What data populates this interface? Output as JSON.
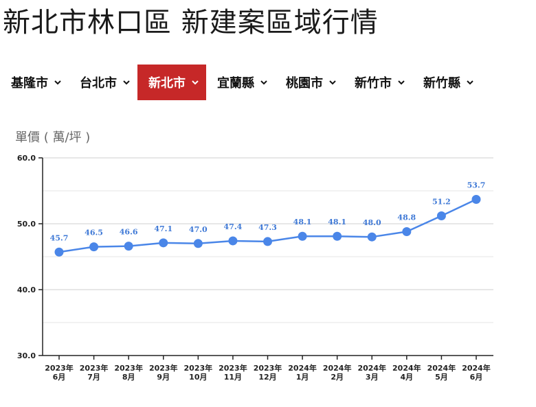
{
  "page": {
    "title": "新北市林口區 新建案區域行情"
  },
  "tabs": [
    {
      "label": "基隆市",
      "active": false
    },
    {
      "label": "台北市",
      "active": false
    },
    {
      "label": "新北市",
      "active": true
    },
    {
      "label": "宜蘭縣",
      "active": false
    },
    {
      "label": "桃園市",
      "active": false
    },
    {
      "label": "新竹市",
      "active": false
    },
    {
      "label": "新竹縣",
      "active": false
    }
  ],
  "icons": {
    "tab_dropdown": "chevron-down-icon"
  },
  "colors": {
    "accent": "#c62828",
    "series": "#4a86e8",
    "data_label": "#3f79d6"
  },
  "chart_data": {
    "type": "line",
    "title": "",
    "ylabel": "單價 ( 萬/坪 )",
    "xlabel": "",
    "ylim": [
      30.0,
      60.0
    ],
    "yticks": [
      "30.0",
      "40.0",
      "50.0",
      "60.0"
    ],
    "grid": true,
    "categories": [
      [
        "2023年",
        "6月"
      ],
      [
        "2023年",
        "7月"
      ],
      [
        "2023年",
        "8月"
      ],
      [
        "2023年",
        "9月"
      ],
      [
        "2023年",
        "10月"
      ],
      [
        "2023年",
        "11月"
      ],
      [
        "2023年",
        "12月"
      ],
      [
        "2024年",
        "1月"
      ],
      [
        "2024年",
        "2月"
      ],
      [
        "2024年",
        "3月"
      ],
      [
        "2024年",
        "4月"
      ],
      [
        "2024年",
        "5月"
      ],
      [
        "2024年",
        "6月"
      ]
    ],
    "series": [
      {
        "values": [
          45.7,
          46.5,
          46.6,
          47.1,
          47.0,
          47.4,
          47.3,
          48.1,
          48.1,
          48.0,
          48.8,
          51.2,
          53.7
        ]
      }
    ]
  }
}
